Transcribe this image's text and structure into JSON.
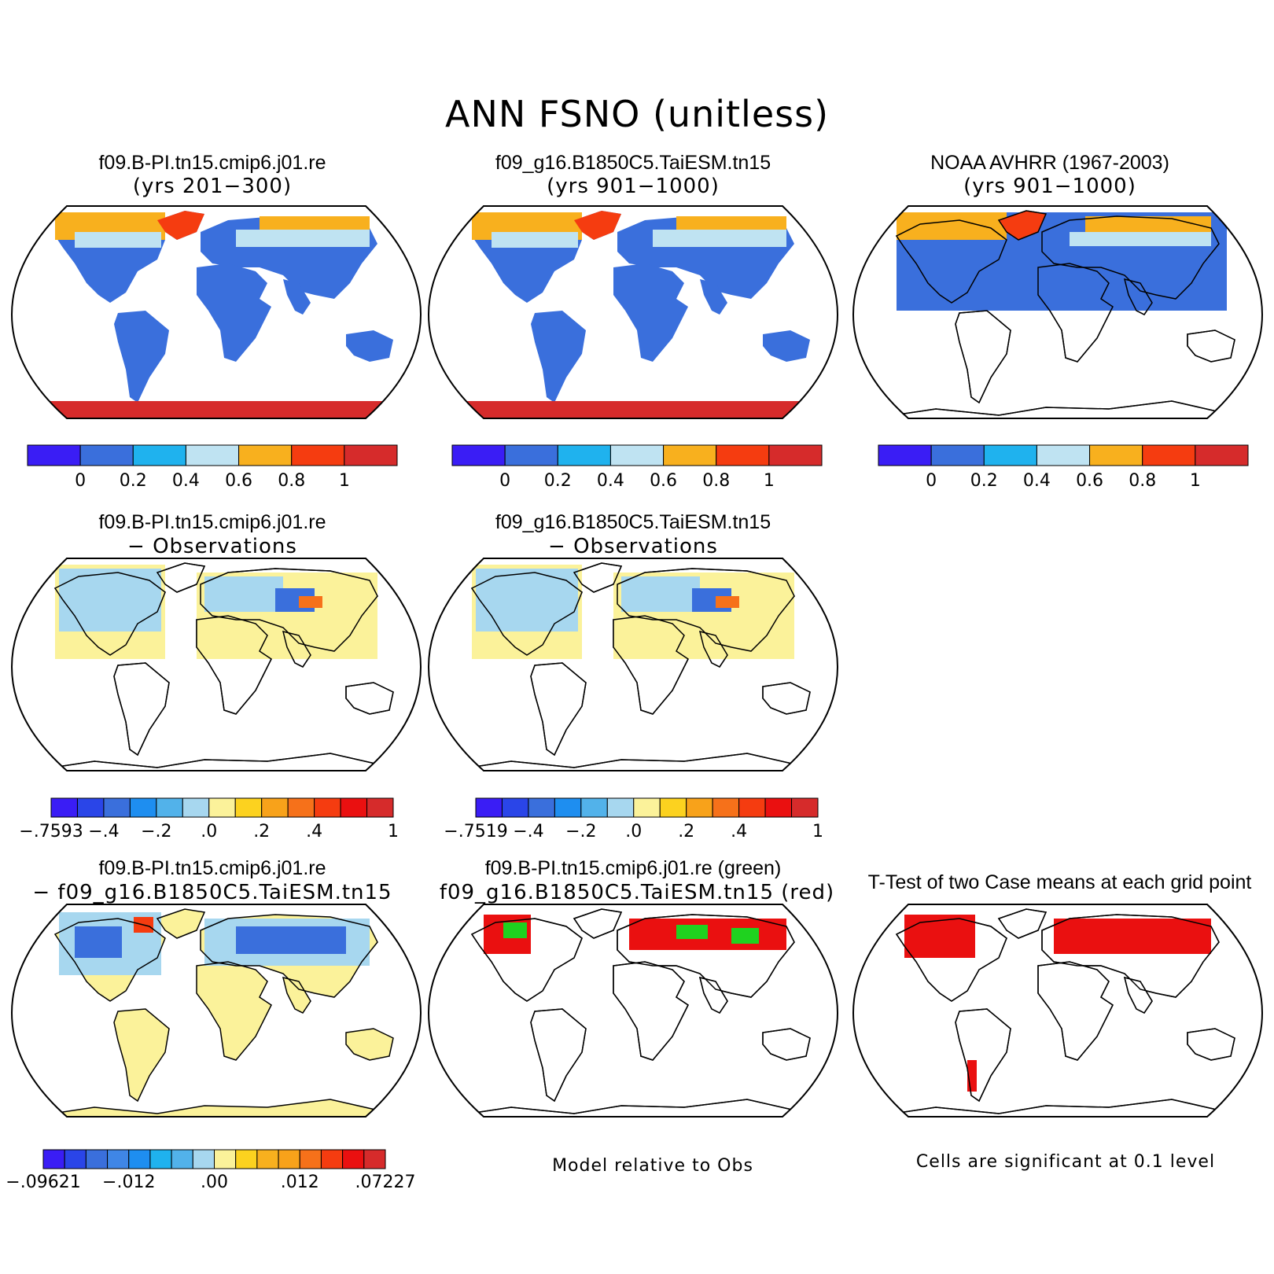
{
  "title": "ANN FSNO (unitless)",
  "panels": [
    {
      "title": "f09.B-PI.tn15.cmip6.j01.re",
      "subtitle": "(yrs 201−300)"
    },
    {
      "title": "f09_g16.B1850C5.TaiESM.tn15",
      "subtitle": "(yrs 901−1000)"
    },
    {
      "title": "NOAA AVHRR (1967-2003)",
      "subtitle": "(yrs 901−1000)"
    },
    {
      "title": "f09.B-PI.tn15.cmip6.j01.re",
      "subtitle": "− Observations"
    },
    {
      "title": "f09_g16.B1850C5.TaiESM.tn15",
      "subtitle": "− Observations"
    },
    {
      "title": "f09.B-PI.tn15.cmip6.j01.re",
      "subtitle": "− f09_g16.B1850C5.TaiESM.tn15"
    },
    {
      "title": "f09.B-PI.tn15.cmip6.j01.re (green)",
      "subtitle": "f09_g16.B1850C5.TaiESM.tn15 (red)"
    },
    {
      "title": "T-Test of two Case means at each grid point",
      "subtitle": ""
    }
  ],
  "colorbars": {
    "fraction": {
      "colors": [
        "#3a1df5",
        "#3a6fdc",
        "#1fb2ee",
        "#bfe3f2",
        "#f8b01e",
        "#f53c10",
        "#d62b2b"
      ],
      "labels": [
        "0",
        "0.2",
        "0.4",
        "0.6",
        "0.8",
        "1"
      ]
    },
    "bias_model1": {
      "colors": [
        "#3a1df5",
        "#2a45e8",
        "#3a6fdc",
        "#1e8ef0",
        "#52b2ea",
        "#a7d7ef",
        "#fbf29a",
        "#fcd21f",
        "#f8a21a",
        "#f6711a",
        "#f53c10",
        "#ea1010",
        "#d62b2b"
      ],
      "labels": [
        "−.7593",
        "−.4",
        "−.2",
        ".0",
        ".2",
        ".4",
        "1"
      ]
    },
    "bias_model2": {
      "colors": [
        "#3a1df5",
        "#2a45e8",
        "#3a6fdc",
        "#1e8ef0",
        "#52b2ea",
        "#a7d7ef",
        "#fbf29a",
        "#fcd21f",
        "#f8a21a",
        "#f6711a",
        "#f53c10",
        "#ea1010",
        "#d62b2b"
      ],
      "labels": [
        "−.7519",
        "−.4",
        "−.2",
        ".0",
        ".2",
        ".4",
        "1"
      ]
    },
    "diff": {
      "colors": [
        "#3a1df5",
        "#2a45e8",
        "#3a6fdc",
        "#3f86e6",
        "#1e8ef0",
        "#1fb2ee",
        "#52b2ea",
        "#a7d7ef",
        "#fbf29a",
        "#fcd21f",
        "#f8b01e",
        "#f8a21a",
        "#f6711a",
        "#f53c10",
        "#ea1010",
        "#d62b2b"
      ],
      "labels": [
        "−.09621",
        "−.012",
        ".00",
        ".012",
        ".07227"
      ]
    }
  },
  "captions": {
    "model_relative": "Model relative to Obs",
    "significance": "Cells are significant at 0.1 level"
  },
  "colors": {
    "land_outline": "#000000",
    "ocean": "#ffffff",
    "low_snow": "#3a6fdc",
    "antarctica": "#d62b2b",
    "model1_sig": "#1fd21f",
    "model2_sig": "#ea1010"
  }
}
